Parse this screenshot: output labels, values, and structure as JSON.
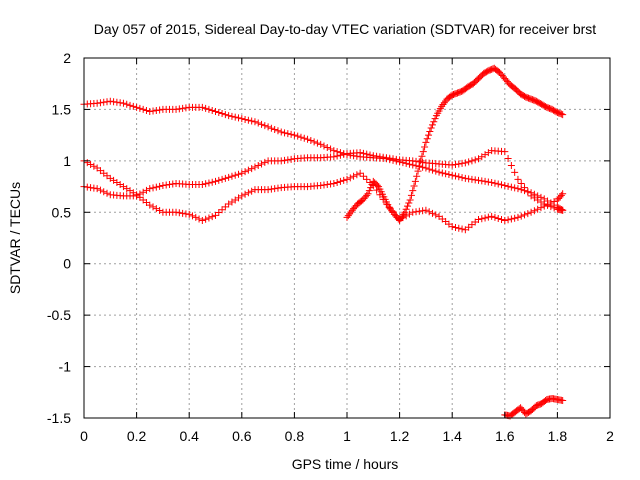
{
  "chart_data": {
    "type": "scatter",
    "title": "Day 057 of 2015, Sidereal Day-to-day VTEC variation (SDTVAR) for receiver brst",
    "xlabel": "GPS time / hours",
    "ylabel": "SDTVAR / TECUs",
    "xlim": [
      0,
      2
    ],
    "ylim": [
      -1.5,
      2
    ],
    "xticks": [
      "0",
      "0.2",
      "0.4",
      "0.6",
      "0.8",
      "1",
      "1.2",
      "1.4",
      "1.6",
      "1.8",
      "2"
    ],
    "yticks": [
      "-1.5",
      "-1",
      "-0.5",
      "0",
      "0.5",
      "1",
      "1.5",
      "2"
    ],
    "xtick_values": [
      0,
      0.2,
      0.4,
      0.6,
      0.8,
      1.0,
      1.2,
      1.4,
      1.6,
      1.8,
      2.0
    ],
    "ytick_values": [
      -1.5,
      -1,
      -0.5,
      0,
      0.5,
      1,
      1.5,
      2
    ],
    "grid": true,
    "marker": "plus",
    "color": "#ff0000",
    "series": [
      {
        "x": [
          0.0,
          0.05,
          0.1,
          0.15,
          0.2,
          0.25,
          0.3,
          0.35,
          0.4,
          0.45,
          0.5,
          0.55,
          0.6,
          0.65,
          0.7,
          0.75,
          0.8,
          0.85,
          0.9,
          0.95,
          1.0,
          1.05,
          1.1,
          1.15,
          1.2,
          1.25,
          1.3,
          1.35,
          1.4,
          1.45,
          1.5,
          1.55,
          1.6,
          1.65,
          1.7,
          1.75,
          1.8,
          1.82
        ],
        "y": [
          1.55,
          1.56,
          1.58,
          1.56,
          1.52,
          1.48,
          1.5,
          1.5,
          1.52,
          1.52,
          1.48,
          1.44,
          1.41,
          1.38,
          1.33,
          1.28,
          1.25,
          1.21,
          1.16,
          1.1,
          1.06,
          1.04,
          1.03,
          1.02,
          0.99,
          0.96,
          0.93,
          0.89,
          0.86,
          0.83,
          0.81,
          0.79,
          0.76,
          0.73,
          0.69,
          0.63,
          0.55,
          0.52
        ]
      },
      {
        "x": [
          0.0,
          0.05,
          0.1,
          0.15,
          0.2,
          0.25,
          0.3,
          0.35,
          0.4,
          0.45,
          0.5,
          0.55,
          0.6,
          0.65,
          0.7,
          0.75,
          0.8,
          0.85,
          0.9,
          0.95,
          1.0,
          1.05,
          1.1,
          1.15,
          1.2,
          1.25,
          1.3,
          1.35,
          1.4,
          1.45,
          1.5,
          1.55,
          1.6,
          1.65,
          1.7,
          1.75,
          1.8,
          1.82
        ],
        "y": [
          1.0,
          0.93,
          0.83,
          0.75,
          0.67,
          0.57,
          0.5,
          0.5,
          0.48,
          0.42,
          0.47,
          0.58,
          0.66,
          0.72,
          0.72,
          0.74,
          0.75,
          0.75,
          0.76,
          0.78,
          0.82,
          0.88,
          0.76,
          0.58,
          0.43,
          0.5,
          0.52,
          0.46,
          0.36,
          0.33,
          0.43,
          0.46,
          0.42,
          0.45,
          0.5,
          0.56,
          0.62,
          0.68
        ]
      },
      {
        "x": [
          0.0,
          0.05,
          0.1,
          0.15,
          0.2,
          0.25,
          0.3,
          0.35,
          0.4,
          0.45,
          0.5,
          0.55,
          0.6,
          0.65,
          0.7,
          0.75,
          0.8,
          0.85,
          0.9,
          0.95,
          1.0,
          1.05,
          1.1,
          1.15,
          1.2,
          1.25,
          1.3,
          1.35,
          1.4,
          1.45,
          1.5,
          1.55,
          1.6,
          1.65,
          1.7,
          1.75,
          1.8,
          1.82
        ],
        "y": [
          0.75,
          0.73,
          0.67,
          0.66,
          0.66,
          0.73,
          0.76,
          0.78,
          0.77,
          0.77,
          0.8,
          0.84,
          0.88,
          0.94,
          1.0,
          1.0,
          1.02,
          1.03,
          1.03,
          1.04,
          1.07,
          1.08,
          1.05,
          1.03,
          1.01,
          1.0,
          0.98,
          0.97,
          0.96,
          0.98,
          1.02,
          1.1,
          1.09,
          0.82,
          0.66,
          0.58,
          0.53,
          0.52
        ]
      },
      {
        "x": [
          1.0,
          1.02,
          1.04,
          1.06,
          1.08,
          1.1,
          1.12,
          1.14,
          1.16,
          1.18,
          1.2,
          1.22,
          1.24,
          1.26,
          1.28,
          1.3,
          1.32,
          1.34,
          1.36,
          1.38,
          1.4,
          1.42,
          1.44,
          1.46,
          1.48,
          1.5,
          1.52,
          1.54,
          1.56,
          1.58,
          1.6,
          1.62,
          1.64,
          1.66,
          1.68,
          1.7,
          1.72,
          1.74,
          1.76,
          1.78,
          1.8,
          1.82
        ],
        "y": [
          0.45,
          0.52,
          0.58,
          0.62,
          0.68,
          0.8,
          0.75,
          0.65,
          0.55,
          0.48,
          0.42,
          0.5,
          0.62,
          0.8,
          1.0,
          1.18,
          1.32,
          1.44,
          1.53,
          1.6,
          1.64,
          1.66,
          1.68,
          1.72,
          1.75,
          1.8,
          1.85,
          1.88,
          1.9,
          1.86,
          1.8,
          1.74,
          1.7,
          1.65,
          1.62,
          1.6,
          1.58,
          1.55,
          1.52,
          1.5,
          1.47,
          1.45
        ]
      },
      {
        "x": [
          1.6,
          1.62,
          1.64,
          1.66,
          1.68,
          1.7,
          1.72,
          1.74,
          1.76,
          1.78,
          1.8,
          1.82
        ],
        "y": [
          -1.47,
          -1.48,
          -1.44,
          -1.4,
          -1.46,
          -1.43,
          -1.38,
          -1.36,
          -1.32,
          -1.31,
          -1.32,
          -1.33
        ]
      }
    ]
  }
}
